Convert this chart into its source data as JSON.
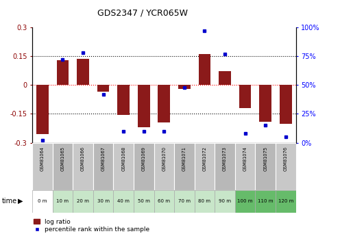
{
  "title": "GDS2347 / YCR065W",
  "samples": [
    "GSM81064",
    "GSM81065",
    "GSM81066",
    "GSM81067",
    "GSM81068",
    "GSM81069",
    "GSM81070",
    "GSM81071",
    "GSM81072",
    "GSM81073",
    "GSM81074",
    "GSM81075",
    "GSM81076"
  ],
  "time_labels": [
    "0 m",
    "10 m",
    "20 m",
    "30 m",
    "40 m",
    "50 m",
    "60 m",
    "70 m",
    "80 m",
    "90 m",
    "100 m",
    "110 m",
    "120 m"
  ],
  "log_ratio": [
    -0.255,
    0.13,
    0.135,
    -0.035,
    -0.155,
    -0.22,
    -0.195,
    -0.02,
    0.16,
    0.07,
    -0.12,
    -0.19,
    -0.2
  ],
  "percentile": [
    2,
    72,
    78,
    42,
    10,
    10,
    10,
    48,
    97,
    77,
    8,
    15,
    5
  ],
  "bar_color": "#8B1A1A",
  "dot_color": "#0000CD",
  "ylim_left": [
    -0.3,
    0.3
  ],
  "ylim_right": [
    0,
    100
  ],
  "sample_bg_even": "#c8c8c8",
  "sample_bg_odd": "#b8b8b8",
  "time_bg_0": "#ffffff",
  "time_bg_mid": "#c8e6c9",
  "time_bg_late": "#66bb6a",
  "legend_bar_label": "log ratio",
  "legend_dot_label": "percentile rank within the sample",
  "left_yticks": [
    -0.3,
    -0.15,
    0,
    0.15,
    0.3
  ],
  "right_yticks": [
    0,
    25,
    50,
    75,
    100
  ],
  "right_yticklabels": [
    "0%",
    "25%",
    "50%",
    "75%",
    "100%"
  ]
}
